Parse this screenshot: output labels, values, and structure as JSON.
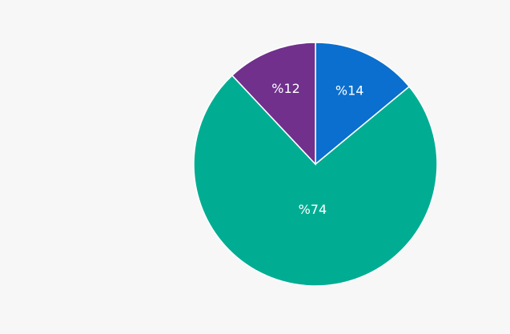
{
  "chart_data": {
    "type": "pie",
    "values": [
      14,
      74,
      12
    ],
    "value_labels": [
      "%14",
      "%74",
      "%12"
    ],
    "colors": [
      "#0a6fcf",
      "#00ad93",
      "#70308c"
    ]
  }
}
